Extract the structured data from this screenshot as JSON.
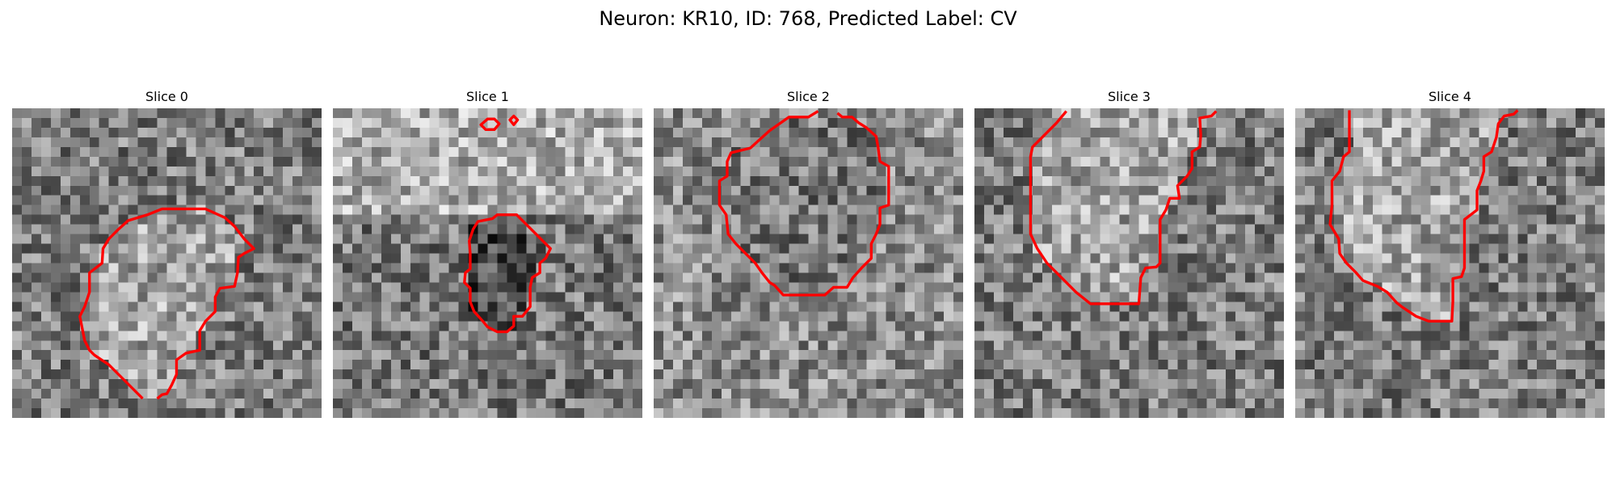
{
  "figure": {
    "title": "Neuron: KR10, ID: 768, Predicted Label: CV",
    "panels": [
      {
        "title": "Slice 0",
        "seed": 11,
        "style": "cell",
        "contour": [
          [
            13.5,
            30
          ],
          [
            11.5,
            28
          ],
          [
            10,
            26.5
          ],
          [
            8.5,
            25.5
          ],
          [
            8,
            25
          ],
          [
            7.5,
            24
          ],
          [
            7,
            21.5
          ],
          [
            7.5,
            20.5
          ],
          [
            8,
            19
          ],
          [
            8,
            17
          ],
          [
            9.3,
            16
          ],
          [
            9.4,
            14.5
          ],
          [
            10,
            13.5
          ],
          [
            11,
            12.5
          ],
          [
            12,
            11.6
          ],
          [
            14,
            11
          ],
          [
            15.5,
            10.4
          ],
          [
            18,
            10.4
          ],
          [
            20,
            10.4
          ],
          [
            22,
            11.3
          ],
          [
            23,
            12.2
          ],
          [
            24,
            13.5
          ],
          [
            25,
            14.5
          ],
          [
            24,
            15
          ],
          [
            23.4,
            15.4
          ],
          [
            23.3,
            17
          ],
          [
            23,
            18.4
          ],
          [
            21.5,
            18.6
          ],
          [
            21,
            19.5
          ],
          [
            21,
            21
          ],
          [
            20,
            22
          ],
          [
            19.4,
            23
          ],
          [
            19.4,
            25
          ],
          [
            18,
            25.3
          ],
          [
            17,
            26
          ],
          [
            17,
            27.5
          ],
          [
            16.5,
            28.6
          ],
          [
            16,
            29.5
          ],
          [
            15.5,
            29.6
          ],
          [
            15,
            30
          ]
        ]
      },
      {
        "title": "Slice 1",
        "seed": 23,
        "style": "dark",
        "contour": [
          [
            15,
            11.7
          ],
          [
            14.5,
            12.5
          ],
          [
            14.1,
            13.7
          ],
          [
            14.2,
            15
          ],
          [
            14.2,
            16.6
          ],
          [
            13.7,
            17
          ],
          [
            13.6,
            18
          ],
          [
            14.2,
            18.6
          ],
          [
            14.2,
            20
          ],
          [
            14.6,
            21
          ],
          [
            15.5,
            22
          ],
          [
            16,
            22.6
          ],
          [
            17,
            23.1
          ],
          [
            18,
            23.1
          ],
          [
            18.7,
            22.5
          ],
          [
            18.7,
            21.5
          ],
          [
            19.6,
            21.5
          ],
          [
            20.4,
            20.5
          ],
          [
            20.4,
            18.5
          ],
          [
            20.6,
            17.5
          ],
          [
            21.4,
            17
          ],
          [
            21.4,
            16
          ],
          [
            22,
            15.5
          ],
          [
            22.5,
            14.5
          ],
          [
            21.8,
            13.8
          ],
          [
            21,
            13
          ],
          [
            20,
            12
          ],
          [
            19.5,
            11.5
          ],
          [
            19,
            11
          ],
          [
            17,
            11
          ],
          [
            16.5,
            11.4
          ]
        ],
        "extra": [
          [
            [
              15.3,
              1.7
            ],
            [
              16,
              1.1
            ],
            [
              16.7,
              1.1
            ],
            [
              17.2,
              1.6
            ],
            [
              16.7,
              2.2
            ],
            [
              15.8,
              2.2
            ]
          ],
          [
            [
              18.3,
              1.2
            ],
            [
              18.7,
              0.8
            ],
            [
              19.1,
              1.2
            ],
            [
              18.7,
              1.7
            ]
          ]
        ]
      },
      {
        "title": "Slice 2",
        "seed": 37,
        "style": "ring",
        "contour": [
          [
            17,
            0.3
          ],
          [
            16,
            0.9
          ],
          [
            14,
            0.9
          ],
          [
            13,
            1.6
          ],
          [
            12,
            2.3
          ],
          [
            11,
            3.2
          ],
          [
            10,
            4.1
          ],
          [
            8,
            4.6
          ],
          [
            7.6,
            5.5
          ],
          [
            7.6,
            7
          ],
          [
            6.8,
            7.5
          ],
          [
            6.8,
            10
          ],
          [
            7.5,
            11
          ],
          [
            7.7,
            13
          ],
          [
            8.5,
            14
          ],
          [
            9.5,
            15
          ],
          [
            10.5,
            16
          ],
          [
            11.2,
            17
          ],
          [
            12,
            18
          ],
          [
            12.5,
            18.3
          ],
          [
            13.4,
            19.3
          ],
          [
            16,
            19.3
          ],
          [
            17.7,
            19.3
          ],
          [
            18.6,
            18.5
          ],
          [
            20,
            18.5
          ],
          [
            20.6,
            17.5
          ],
          [
            21.5,
            16.5
          ],
          [
            22.5,
            15.5
          ],
          [
            22.5,
            14
          ],
          [
            23,
            13
          ],
          [
            23.4,
            12
          ],
          [
            23.4,
            10.3
          ],
          [
            24.3,
            10
          ],
          [
            24.3,
            8.5
          ],
          [
            24.3,
            6
          ],
          [
            23.4,
            5.5
          ],
          [
            23.2,
            4
          ],
          [
            23,
            2.9
          ],
          [
            22,
            2
          ],
          [
            21.2,
            1.5
          ],
          [
            20.5,
            0.9
          ],
          [
            19.5,
            0.9
          ],
          [
            19,
            0.5
          ]
        ]
      },
      {
        "title": "Slice 3",
        "seed": 51,
        "style": "cell",
        "contour": [
          [
            9.5,
            0.3
          ],
          [
            8.5,
            1.5
          ],
          [
            7.5,
            2.5
          ],
          [
            6.5,
            3.5
          ],
          [
            6,
            4
          ],
          [
            5.8,
            5
          ],
          [
            5.8,
            13
          ],
          [
            6.5,
            14.5
          ],
          [
            7.5,
            16
          ],
          [
            8.5,
            17
          ],
          [
            9.5,
            18
          ],
          [
            10.5,
            19
          ],
          [
            12,
            20.2
          ],
          [
            17,
            20.2
          ],
          [
            17.2,
            17.5
          ],
          [
            17.7,
            16.5
          ],
          [
            18.8,
            16.4
          ],
          [
            19.2,
            16
          ],
          [
            19.2,
            14
          ],
          [
            19.2,
            11.5
          ],
          [
            19.8,
            10.5
          ],
          [
            20.2,
            9.3
          ],
          [
            21.2,
            9.3
          ],
          [
            21,
            8
          ],
          [
            22,
            7
          ],
          [
            22.5,
            6.2
          ],
          [
            22.5,
            4.5
          ],
          [
            23.3,
            4
          ],
          [
            23.4,
            2.8
          ],
          [
            23.3,
            1
          ],
          [
            24.5,
            0.8
          ],
          [
            25,
            0.3
          ]
        ]
      },
      {
        "title": "Slice 4",
        "seed": 67,
        "style": "cell",
        "contour": [
          [
            5.6,
            0.2
          ],
          [
            5.6,
            4.5
          ],
          [
            5,
            5
          ],
          [
            4.6,
            6.5
          ],
          [
            3.8,
            7.5
          ],
          [
            3.8,
            10
          ],
          [
            3.6,
            12
          ],
          [
            4.5,
            13.5
          ],
          [
            4.6,
            15
          ],
          [
            5.3,
            16
          ],
          [
            6.3,
            17
          ],
          [
            7,
            17.8
          ],
          [
            8.5,
            18.4
          ],
          [
            9.5,
            19
          ],
          [
            10.5,
            20.1
          ],
          [
            11,
            20.5
          ],
          [
            12.5,
            21.5
          ],
          [
            13.8,
            22
          ],
          [
            16.2,
            22
          ],
          [
            16.3,
            20
          ],
          [
            16.3,
            17.6
          ],
          [
            17.2,
            17.4
          ],
          [
            17.5,
            16.5
          ],
          [
            17.5,
            14.4
          ],
          [
            17.5,
            11.5
          ],
          [
            18.8,
            10.5
          ],
          [
            18.8,
            8.5
          ],
          [
            19.2,
            7.5
          ],
          [
            19.5,
            6.5
          ],
          [
            19.5,
            5
          ],
          [
            20.3,
            4.5
          ],
          [
            20.8,
            3
          ],
          [
            21,
            1.6
          ],
          [
            21.6,
            0.8
          ],
          [
            22.6,
            0.6
          ],
          [
            23,
            0.2
          ]
        ]
      }
    ]
  },
  "colors": {
    "contour": "#ff0000"
  },
  "grid_size": 32
}
